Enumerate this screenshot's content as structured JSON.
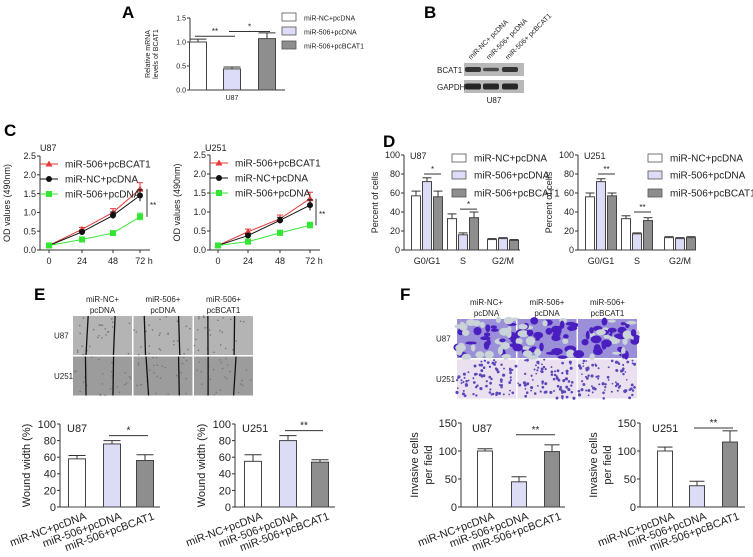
{
  "panels": {
    "A": {
      "label": "A"
    },
    "B": {
      "label": "B",
      "lanes": [
        "miR-NC+ pcDNA",
        "miR-506+ pcDNA",
        "miR-506+ pcBCAT1"
      ],
      "rows": [
        "BCAT1",
        "GAPDH"
      ],
      "cell_line": "U87",
      "band_intensity": {
        "BCAT1": [
          0.8,
          0.5,
          0.8
        ],
        "GAPDH": [
          1,
          1,
          1
        ]
      }
    },
    "C": {
      "label": "C"
    },
    "D": {
      "label": "D"
    },
    "E": {
      "label": "E",
      "columns": [
        [
          "miR-NC+",
          "pcDNA"
        ],
        [
          "miR-506+",
          "pcDNA"
        ],
        [
          "miR-506+",
          "pcBCAT1"
        ]
      ],
      "rows": [
        "U87",
        "U251"
      ]
    },
    "F": {
      "label": "F",
      "columns": [
        [
          "miR-NC+",
          "pcDNA"
        ],
        [
          "miR-506+",
          "pcDNA"
        ],
        [
          "miR-506+",
          "pcBCAT1"
        ]
      ],
      "rows": [
        "U87",
        "U251"
      ]
    }
  },
  "colors": {
    "white_bar": "#ffffff",
    "lavender_bar": "#dcdcf7",
    "gray_bar": "#8e8e8e",
    "red": "#e53a3a",
    "black": "#111111",
    "green": "#33e633"
  },
  "chart_data": [
    {
      "panel": "A",
      "type": "bar",
      "title": "",
      "categories": [
        "U87"
      ],
      "series": [
        {
          "name": "miR-NC+pcDNA",
          "values": [
            1.0
          ],
          "errors": [
            0.06
          ],
          "color": "#ffffff"
        },
        {
          "name": "miR-506+pcDNA",
          "values": [
            0.44
          ],
          "errors": [
            0.04
          ],
          "color": "#dcdcf7"
        },
        {
          "name": "miR-506+pcBCAT1",
          "values": [
            1.07
          ],
          "errors": [
            0.12
          ],
          "color": "#8e8e8e"
        }
      ],
      "ylabel": [
        "Relative mRNA",
        "levels of BCAT1"
      ],
      "ylim": [
        0,
        1.5
      ],
      "yticks": [
        "0.0",
        "0.5",
        "1.0",
        "1.5"
      ],
      "ytick_values": [
        0,
        0.5,
        1.0,
        1.5
      ],
      "significance": [
        {
          "between": [
            0,
            1
          ],
          "label": "**",
          "y": 1.12
        },
        {
          "between": [
            1,
            2
          ],
          "label": "*",
          "y": 1.22
        }
      ],
      "legend": "right"
    },
    {
      "panel": "C",
      "type": "line",
      "title": "U87",
      "x": [
        0,
        24,
        48,
        72
      ],
      "xticks": [
        "0",
        "24",
        "48",
        "72 h"
      ],
      "series": [
        {
          "name": "miR-506+pcBCAT1",
          "values": [
            0.12,
            0.55,
            1.0,
            1.62
          ],
          "errors": [
            0.02,
            0.05,
            0.1,
            0.17
          ],
          "color": "#e53a3a",
          "marker": "triangle"
        },
        {
          "name": "miR-NC+pcDNA",
          "values": [
            0.12,
            0.48,
            0.92,
            1.45
          ],
          "errors": [
            0.02,
            0.05,
            0.09,
            0.15
          ],
          "color": "#111111",
          "marker": "circle"
        },
        {
          "name": "miR-506+pcDNA",
          "values": [
            0.12,
            0.28,
            0.45,
            0.88
          ],
          "errors": [
            0.02,
            0.04,
            0.05,
            0.1
          ],
          "color": "#33e633",
          "marker": "square"
        }
      ],
      "ylabel": [
        "OD values (490nm)"
      ],
      "ylim": [
        0,
        2.5
      ],
      "yticks": [
        "0.0",
        "0.5",
        "1.0",
        "1.5",
        "2.0",
        "2.5"
      ],
      "ytick_values": [
        0,
        0.5,
        1,
        1.5,
        2,
        2.5
      ],
      "bracket": {
        "label": "**",
        "span": [
          0.88,
          1.62
        ]
      },
      "legend": "top-left"
    },
    {
      "panel": "C",
      "type": "line",
      "title": "U251",
      "x": [
        0,
        24,
        48,
        72
      ],
      "xticks": [
        "0",
        "24",
        "48",
        "72 h"
      ],
      "series": [
        {
          "name": "miR-506+pcBCAT1",
          "values": [
            0.12,
            0.48,
            0.82,
            1.35
          ],
          "errors": [
            0.02,
            0.07,
            0.1,
            0.17
          ],
          "color": "#e53a3a",
          "marker": "triangle"
        },
        {
          "name": "miR-NC+pcDNA",
          "values": [
            0.12,
            0.38,
            0.78,
            1.18
          ],
          "errors": [
            0.02,
            0.05,
            0.08,
            0.14
          ],
          "color": "#111111",
          "marker": "circle"
        },
        {
          "name": "miR-506+pcDNA",
          "values": [
            0.12,
            0.22,
            0.45,
            0.65
          ],
          "errors": [
            0.02,
            0.04,
            0.07,
            0.08
          ],
          "color": "#33e633",
          "marker": "square"
        }
      ],
      "ylabel": [
        "OD values (490nm)"
      ],
      "ylim": [
        0,
        2.5
      ],
      "yticks": [
        "0.0",
        "0.5",
        "1.0",
        "1.5",
        "2.0",
        "2.5"
      ],
      "ytick_values": [
        0,
        0.5,
        1,
        1.5,
        2,
        2.5
      ],
      "bracket": {
        "label": "**",
        "span": [
          0.65,
          1.35
        ]
      },
      "legend": "top-left"
    },
    {
      "panel": "D",
      "type": "bar",
      "title": "U87",
      "categories": [
        "G0/G1",
        "S",
        "G2/M"
      ],
      "series": [
        {
          "name": "miR-NC+pcDNA",
          "values": [
            57,
            33,
            11
          ],
          "errors": [
            5,
            5,
            1
          ],
          "color": "#ffffff"
        },
        {
          "name": "miR-506+pcDNA",
          "values": [
            72,
            16,
            12
          ],
          "errors": [
            4,
            2,
            1
          ],
          "color": "#dcdcf7"
        },
        {
          "name": "miR-506+pcBCAT1",
          "values": [
            56,
            34,
            10
          ],
          "errors": [
            6,
            6,
            1
          ],
          "color": "#8e8e8e"
        }
      ],
      "ylabel": [
        "Percent of cells"
      ],
      "ylim": [
        0,
        100
      ],
      "yticks": [
        "0",
        "20",
        "40",
        "60",
        "80",
        "100"
      ],
      "ytick_values": [
        0,
        20,
        40,
        60,
        80,
        100
      ],
      "significance": [
        {
          "between": [
            1,
            2
          ],
          "label": "*",
          "y": 80,
          "category": 0
        },
        {
          "between": [
            1,
            2
          ],
          "label": "*",
          "y": 43,
          "category": 1
        }
      ],
      "legend": "top-right"
    },
    {
      "panel": "D",
      "type": "bar",
      "title": "U251",
      "categories": [
        "G0/G1",
        "S",
        "G2/M"
      ],
      "series": [
        {
          "name": "miR-NC+pcDNA",
          "values": [
            56,
            33,
            13
          ],
          "errors": [
            4,
            3,
            1
          ],
          "color": "#ffffff"
        },
        {
          "name": "miR-506+pcDNA",
          "values": [
            72,
            17,
            12
          ],
          "errors": [
            3,
            1,
            1
          ],
          "color": "#dcdcf7"
        },
        {
          "name": "miR-506+pcBCAT1",
          "values": [
            57,
            31,
            13
          ],
          "errors": [
            3,
            3,
            1
          ],
          "color": "#8e8e8e"
        }
      ],
      "ylabel": [
        "Percent of cells"
      ],
      "ylim": [
        0,
        100
      ],
      "yticks": [
        "0",
        "20",
        "40",
        "60",
        "80",
        "100"
      ],
      "ytick_values": [
        0,
        20,
        40,
        60,
        80,
        100
      ],
      "significance": [
        {
          "between": [
            1,
            2
          ],
          "label": "**",
          "y": 80,
          "category": 0
        },
        {
          "between": [
            1,
            2
          ],
          "label": "**",
          "y": 40,
          "category": 1
        }
      ],
      "legend": "top-right"
    },
    {
      "panel": "E",
      "type": "bar",
      "title": "U87",
      "categories": [
        "miR-NC+pcDNA",
        "miR-506+pcDNA",
        "miR-506+pcBCAT1"
      ],
      "values": [
        58,
        76,
        56
      ],
      "errors": [
        4,
        4,
        7
      ],
      "colors": [
        "#ffffff",
        "#dcdcf7",
        "#8e8e8e"
      ],
      "ylabel": [
        "Wound width (%)"
      ],
      "ylim": [
        0,
        100
      ],
      "yticks": [
        "0",
        "20",
        "40",
        "60",
        "80",
        "100"
      ],
      "ytick_values": [
        0,
        20,
        40,
        60,
        80,
        100
      ],
      "significance": [
        {
          "between": [
            1,
            2
          ],
          "label": "*",
          "y": 86
        }
      ]
    },
    {
      "panel": "E",
      "type": "bar",
      "title": "U251",
      "categories": [
        "miR-NC+pcDNA",
        "miR-506+pcDNA",
        "miR-506+pcBCAT1"
      ],
      "values": [
        55,
        80,
        54
      ],
      "errors": [
        8,
        6,
        3
      ],
      "colors": [
        "#ffffff",
        "#dcdcf7",
        "#8e8e8e"
      ],
      "ylabel": [
        "Wound width (%)"
      ],
      "ylim": [
        0,
        100
      ],
      "yticks": [
        "0",
        "20",
        "40",
        "60",
        "80",
        "100"
      ],
      "ytick_values": [
        0,
        20,
        40,
        60,
        80,
        100
      ],
      "significance": [
        {
          "between": [
            1,
            2
          ],
          "label": "**",
          "y": 92
        }
      ]
    },
    {
      "panel": "F",
      "type": "bar",
      "title": "U87",
      "categories": [
        "miR-NC+pcDNA",
        "miR-506+pcDNA",
        "miR-506+pcBCAT1"
      ],
      "values": [
        100,
        45,
        99
      ],
      "errors": [
        4,
        9,
        12
      ],
      "colors": [
        "#ffffff",
        "#dcdcf7",
        "#8e8e8e"
      ],
      "ylabel": [
        "Invasive cells",
        "per field"
      ],
      "ylim": [
        0,
        150
      ],
      "yticks": [
        "0",
        "50",
        "100",
        "150"
      ],
      "ytick_values": [
        0,
        50,
        100,
        150
      ],
      "significance": [
        {
          "between": [
            1,
            2
          ],
          "label": "**",
          "y": 129
        }
      ]
    },
    {
      "panel": "F",
      "type": "bar",
      "title": "U251",
      "categories": [
        "miR-NC+pcDNA",
        "miR-506+pcDNA",
        "miR-506+pcBCAT1"
      ],
      "values": [
        100,
        38,
        116
      ],
      "errors": [
        7,
        8,
        20
      ],
      "colors": [
        "#ffffff",
        "#dcdcf7",
        "#8e8e8e"
      ],
      "ylabel": [
        "Invasive cells",
        "per field"
      ],
      "ylim": [
        0,
        150
      ],
      "yticks": [
        "0",
        "50",
        "100",
        "150"
      ],
      "ytick_values": [
        0,
        50,
        100,
        150
      ],
      "significance": [
        {
          "between": [
            1,
            2
          ],
          "label": "**",
          "y": 141
        }
      ]
    }
  ]
}
